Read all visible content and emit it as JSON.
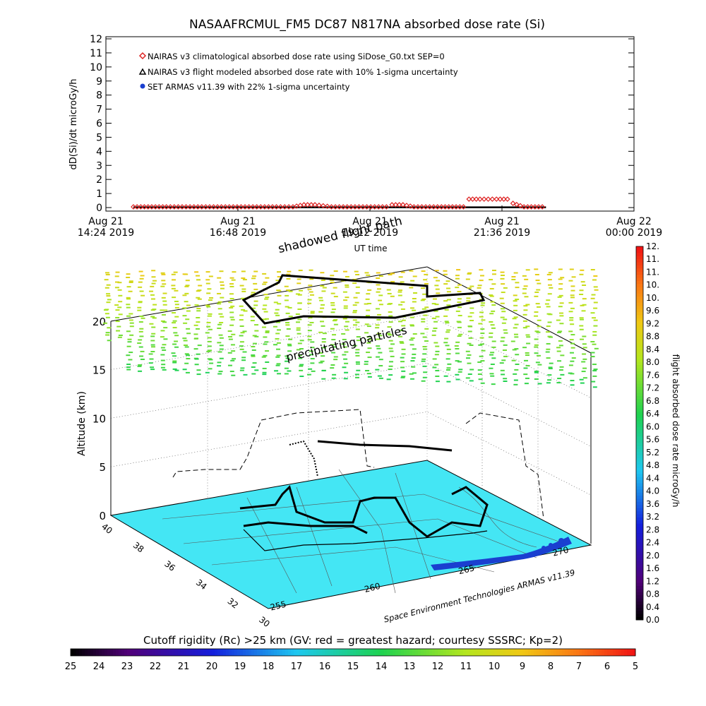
{
  "title": "NASAAFRCMUL_FM5 DC87 N817NA absorbed dose rate (Si)",
  "chart_data": [
    {
      "type": "line",
      "title": "NASAAFRCMUL_FM5 DC87 N817NA absorbed dose rate (Si)",
      "ylabel": "dD(Si)/dt microGy/h",
      "xlabel": "UT time",
      "ylim": [
        0,
        12
      ],
      "yticks": [
        "0",
        "1",
        "2",
        "3",
        "4",
        "5",
        "6",
        "7",
        "8",
        "9",
        "10",
        "11",
        "12"
      ],
      "xticks": [
        {
          "line1": "Aug 21",
          "line2": "14:24 2019"
        },
        {
          "line1": "Aug 21",
          "line2": "16:48 2019"
        },
        {
          "line1": "Aug 21",
          "line2": "19:12 2019"
        },
        {
          "line1": "Aug 21",
          "line2": "21:36 2019"
        },
        {
          "line1": "Aug 22",
          "line2": "00:00 2019"
        }
      ],
      "xlim_hours": [
        14.4,
        24.0
      ],
      "legend_position": "top-left",
      "series": [
        {
          "name": "NAIRAS v3 climatological absorbed dose rate using SiDose_G0.txt SEP=0",
          "marker": "diamond",
          "color": "#dd2222",
          "x_hours": [
            14.9,
            15.5,
            16.0,
            16.5,
            17.0,
            17.5,
            17.8,
            18.0,
            18.2,
            18.5,
            19.0,
            19.5,
            19.6,
            19.8,
            20.0,
            20.5,
            20.9,
            21.0,
            21.2,
            21.5,
            21.7,
            21.8,
            22.0,
            22.4
          ],
          "values": [
            0.05,
            0.05,
            0.05,
            0.05,
            0.05,
            0.05,
            0.05,
            0.2,
            0.2,
            0.05,
            0.05,
            0.05,
            0.2,
            0.2,
            0.05,
            0.05,
            0.05,
            0.6,
            0.6,
            0.6,
            0.6,
            0.3,
            0.05,
            0.05
          ]
        },
        {
          "name": "NAIRAS v3 flight modeled absorbed dose rate with 10% 1-sigma uncertainty",
          "marker": "triangle",
          "color": "#000000",
          "x_hours": [
            14.9,
            22.4
          ],
          "values": [
            0.02,
            0.02
          ]
        },
        {
          "name": "SET ARMAS v11.39 with 22% 1-sigma uncertainty",
          "marker": "circle",
          "color": "#1a3fd0",
          "x_hours": [],
          "values": []
        }
      ]
    },
    {
      "type": "scatter",
      "ylabel": "Altitude (km)",
      "zticks": [
        "0",
        "5",
        "10",
        "15",
        "20"
      ],
      "latitude_ticks": [
        "40",
        "38",
        "36",
        "34",
        "32",
        "30"
      ],
      "longitude_ticks": [
        "255",
        "260",
        "265",
        "270"
      ],
      "annotations": [
        "shadowed flight path",
        "precipitating particles"
      ],
      "credit": "Space Environment Technologies ARMAS v11.39"
    }
  ],
  "colorbar": {
    "label": "flight absorbed dose rate microGy/h",
    "ticks": [
      "0.0",
      "0.4",
      "0.8",
      "1.2",
      "1.6",
      "2.0",
      "2.4",
      "2.8",
      "3.2",
      "3.6",
      "4.0",
      "4.4",
      "4.8",
      "5.2",
      "5.6",
      "6.0",
      "6.4",
      "6.8",
      "7.2",
      "7.6",
      "8.0",
      "8.4",
      "8.8",
      "9.2",
      "9.6",
      "10.",
      "10.",
      "11.",
      "11.",
      "12."
    ],
    "range": [
      0,
      12
    ]
  },
  "rigidity_bar": {
    "label": "Cutoff rigidity (Rc) >25 km (GV: red = greatest hazard; courtesy SSSRC; Kp=2)",
    "ticks": [
      "25",
      "24",
      "23",
      "22",
      "21",
      "20",
      "19",
      "18",
      "17",
      "16",
      "15",
      "14",
      "13",
      "12",
      "11",
      "10",
      "9",
      "8",
      "7",
      "6",
      "5"
    ],
    "range": [
      25,
      5
    ]
  }
}
